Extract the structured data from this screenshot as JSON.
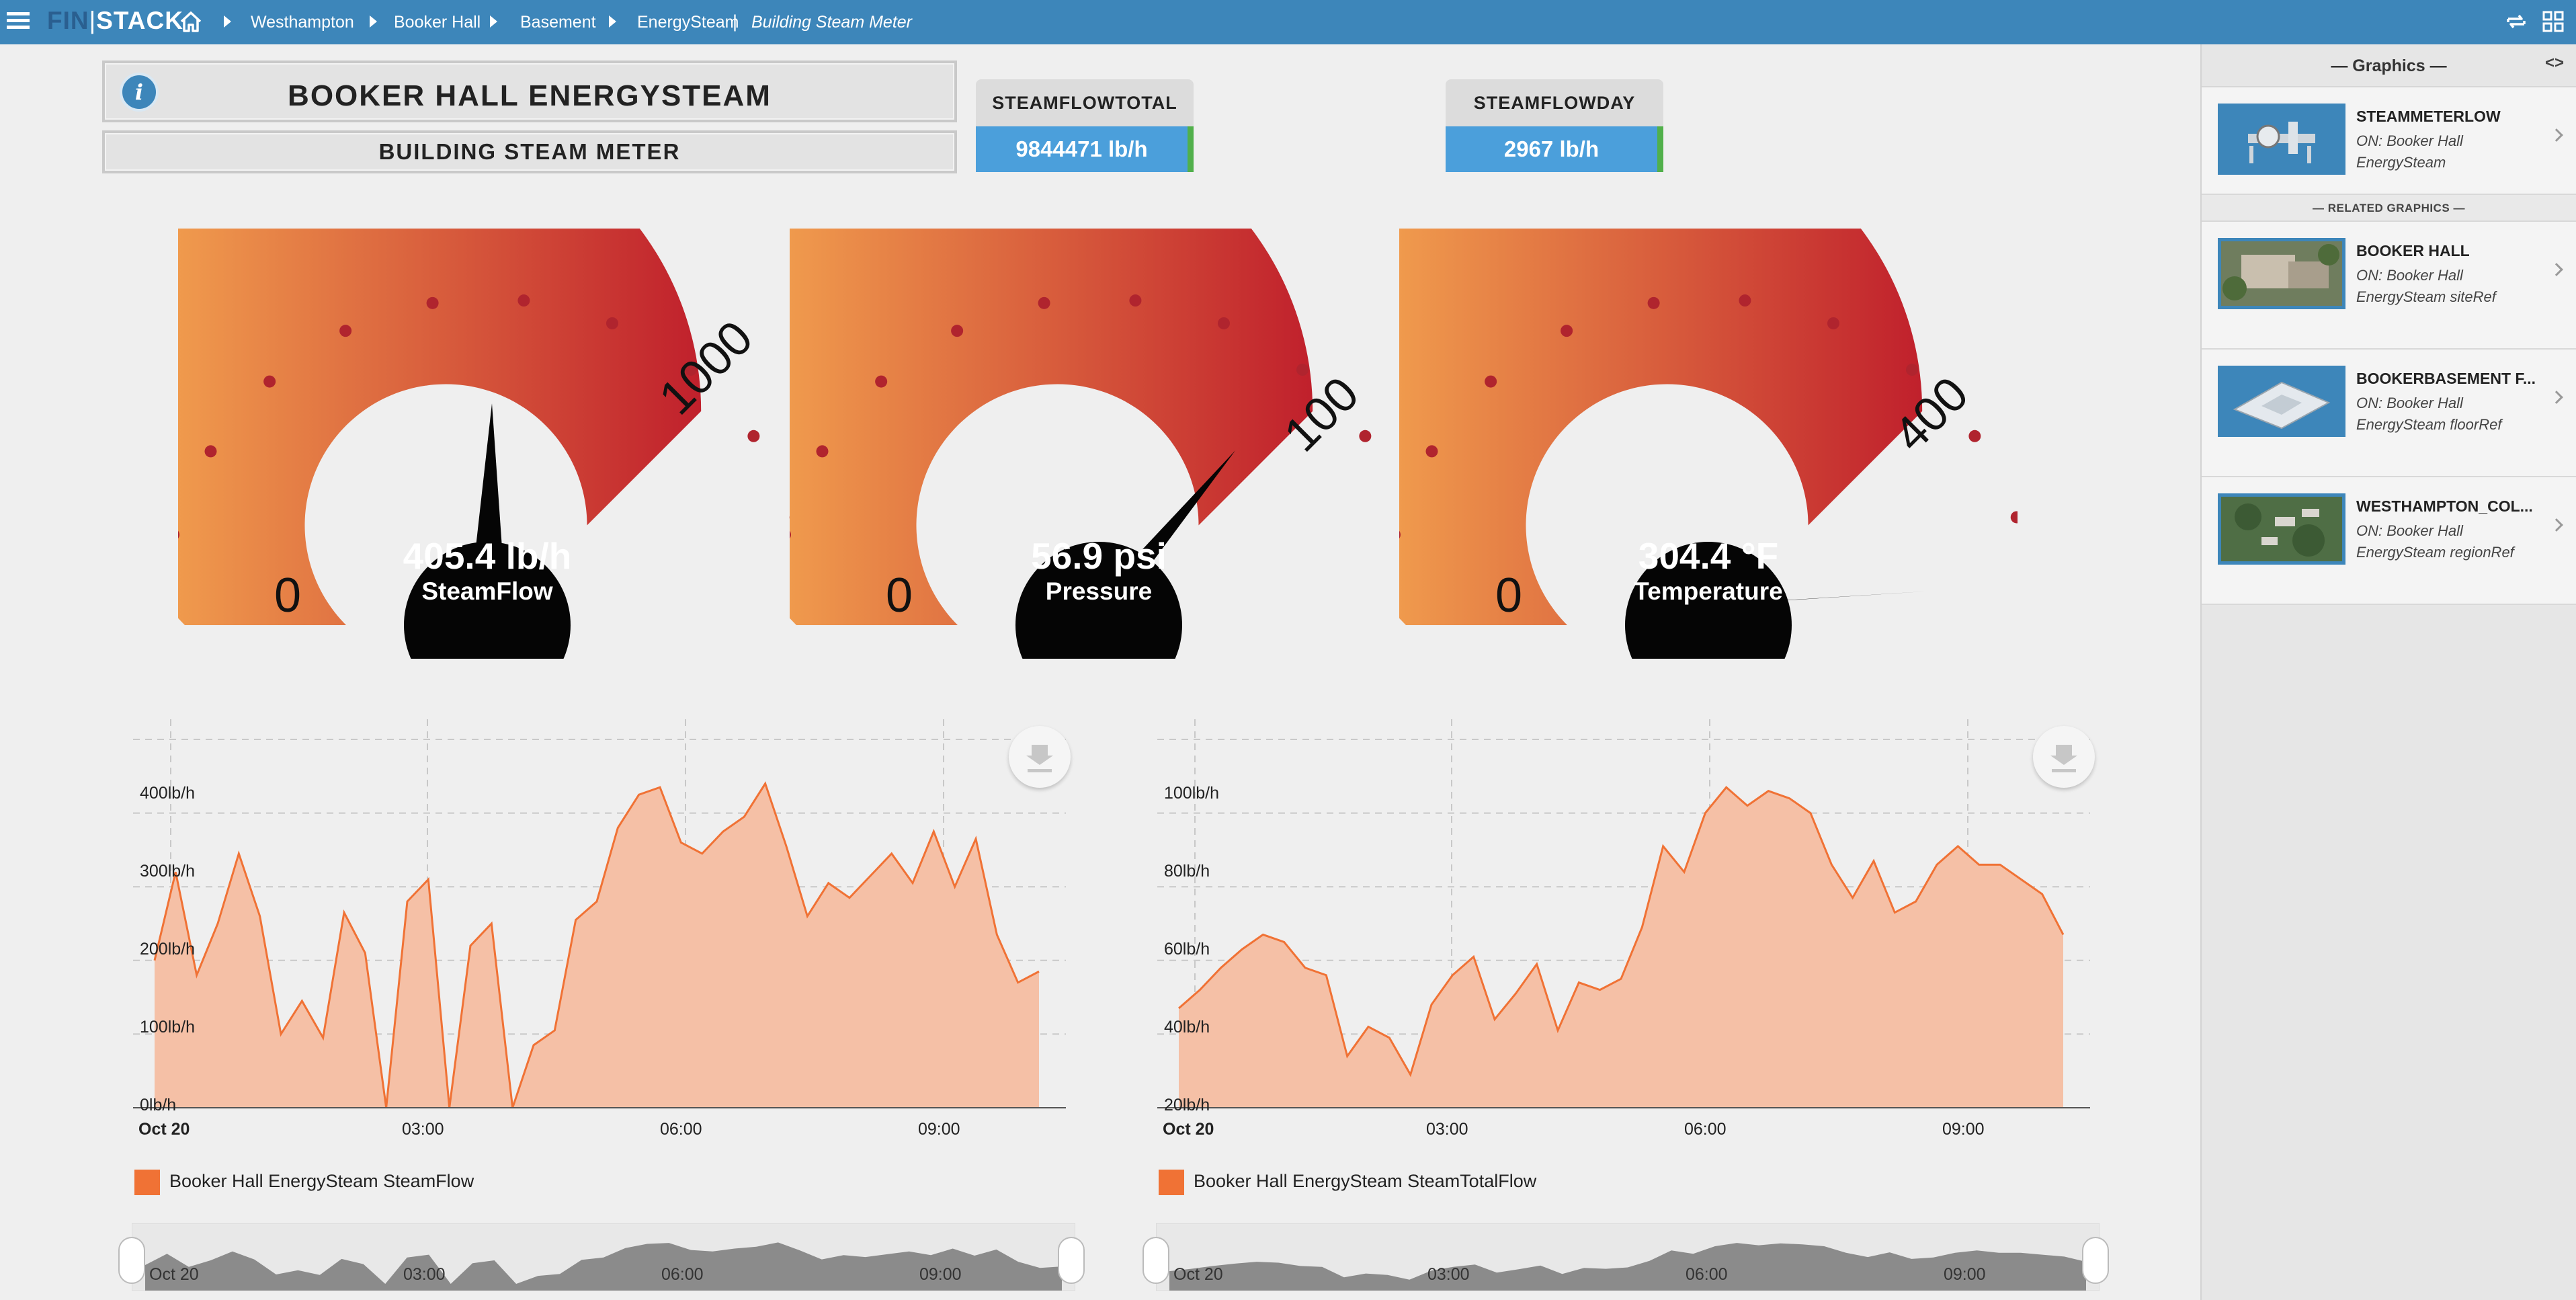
{
  "topbar": {
    "logo_prefix": "FIN",
    "logo_suffix": "STACK",
    "breadcrumbs": [
      "Westhampton",
      "Booker Hall",
      "Basement",
      "EnergySteam"
    ],
    "page_name": "Building Steam Meter"
  },
  "header": {
    "title": "BOOKER HALL ENERGYSTEAM",
    "subtitle": "BUILDING STEAM METER",
    "info_glyph": "i"
  },
  "stats": [
    {
      "label": "STEAMFLOWTOTAL",
      "value": "9844471 lb/h"
    },
    {
      "label": "STEAMFLOWDAY",
      "value": "2967 lb/h"
    }
  ],
  "gauges": [
    {
      "value_text": "405.4 lb/h",
      "name": "SteamFlow",
      "min": "0",
      "max": "1000",
      "value": 405.4,
      "max_value": 1000
    },
    {
      "value_text": "56.9 psi",
      "name": "Pressure",
      "min": "0",
      "max": "100",
      "value": 56.9,
      "max_value": 100
    },
    {
      "value_text": "304.4 °F",
      "name": "Temperature",
      "min": "0",
      "max": "400",
      "value": 304.4,
      "max_value": 400
    }
  ],
  "chart_data": [
    {
      "type": "area",
      "x_ticks": [
        "Oct 20",
        "03:00",
        "06:00",
        "09:00"
      ],
      "y_ticks": [
        "0lb/h",
        "100lb/h",
        "200lb/h",
        "300lb/h",
        "400lb/h"
      ],
      "ylim": [
        0,
        500
      ],
      "legend_label": "Booker Hall EnergySteam SteamFlow",
      "navigator_ticks": [
        "Oct 20",
        "03:00",
        "06:00",
        "09:00"
      ],
      "series": [
        {
          "name": "Booker Hall EnergySteam SteamFlow",
          "values": [
            200,
            320,
            180,
            250,
            345,
            260,
            100,
            145,
            95,
            265,
            210,
            0,
            280,
            310,
            0,
            220,
            250,
            0,
            85,
            105,
            255,
            280,
            380,
            425,
            435,
            360,
            345,
            375,
            395,
            440,
            355,
            260,
            305,
            285,
            315,
            345,
            305,
            375,
            300,
            365,
            235,
            170,
            185
          ]
        }
      ],
      "color": "#f07235",
      "grid": true
    },
    {
      "type": "area",
      "x_ticks": [
        "Oct 20",
        "03:00",
        "06:00",
        "09:00"
      ],
      "y_ticks": [
        "20lb/h",
        "40lb/h",
        "60lb/h",
        "80lb/h",
        "100lb/h"
      ],
      "ylim": [
        20,
        120
      ],
      "legend_label": "Booker Hall EnergySteam SteamTotalFlow",
      "navigator_ticks": [
        "Oct 20",
        "03:00",
        "06:00",
        "09:00"
      ],
      "series": [
        {
          "name": "Booker Hall EnergySteam SteamTotalFlow",
          "values": [
            47,
            52,
            58,
            63,
            67,
            65,
            58,
            56,
            34,
            42,
            39,
            29,
            48,
            56,
            61,
            44,
            51,
            59,
            41,
            54,
            52,
            55,
            69,
            91,
            84,
            100,
            107,
            102,
            106,
            104,
            100,
            86,
            77,
            87,
            73,
            76,
            86,
            91,
            86,
            86,
            82,
            78,
            67
          ]
        }
      ],
      "color": "#f07235",
      "grid": true
    }
  ],
  "sidebar": {
    "title": "— Graphics —",
    "collapse_glyph": "<>",
    "primary": {
      "name": "STEAMMETERLOW",
      "desc": "ON: Booker Hall EnergySteam"
    },
    "section_label": "— RELATED GRAPHICS —",
    "related": [
      {
        "name": "BOOKER HALL",
        "desc": "ON: Booker Hall EnergySteam siteRef"
      },
      {
        "name": "BOOKERBASEMENT F...",
        "desc": "ON: Booker Hall EnergySteam floorRef"
      },
      {
        "name": "WESTHAMPTON_COL...",
        "desc": "ON: Booker Hall EnergySteam regionRef"
      }
    ]
  },
  "colors": {
    "topbar": "#3d86ba",
    "stat_value": "#4b9fdb",
    "stat_ok": "#51b04b",
    "gauge_start": "#f7ad52",
    "gauge_end": "#c0202c",
    "series": "#f07235"
  }
}
